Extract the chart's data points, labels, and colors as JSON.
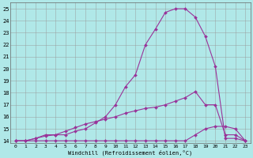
{
  "xlabel": "Windchill (Refroidissement éolien,°C)",
  "background_color": "#b0e8e8",
  "grid_color": "#999999",
  "line_color": "#993399",
  "xlim": [
    -0.5,
    23.5
  ],
  "ylim": [
    13.8,
    25.5
  ],
  "xticks": [
    0,
    1,
    2,
    3,
    4,
    5,
    6,
    7,
    8,
    9,
    10,
    11,
    12,
    13,
    14,
    15,
    16,
    17,
    18,
    19,
    20,
    21,
    22,
    23
  ],
  "yticks": [
    14,
    15,
    16,
    17,
    18,
    19,
    20,
    21,
    22,
    23,
    24,
    25
  ],
  "line1_x": [
    0,
    1,
    2,
    3,
    4,
    5,
    6,
    7,
    8,
    9,
    10,
    11,
    12,
    13,
    14,
    15,
    16,
    17,
    18,
    19,
    20,
    21,
    22,
    23
  ],
  "line1_y": [
    14.0,
    14.0,
    14.2,
    14.5,
    14.5,
    14.5,
    14.8,
    15.0,
    15.5,
    16.0,
    17.0,
    18.5,
    19.5,
    22.0,
    23.3,
    24.7,
    25.0,
    25.0,
    24.3,
    22.7,
    20.2,
    14.2,
    14.2,
    14.0
  ],
  "line2_x": [
    0,
    1,
    2,
    3,
    4,
    5,
    6,
    7,
    8,
    9,
    10,
    11,
    12,
    13,
    14,
    15,
    16,
    17,
    18,
    19,
    20,
    21,
    22,
    23
  ],
  "line2_y": [
    14.0,
    14.0,
    14.0,
    14.0,
    14.0,
    14.0,
    14.0,
    14.0,
    14.0,
    14.0,
    14.0,
    14.0,
    14.0,
    14.0,
    14.0,
    14.0,
    14.0,
    14.0,
    14.5,
    15.0,
    15.2,
    15.2,
    15.0,
    14.0
  ],
  "line3_x": [
    0,
    1,
    2,
    3,
    4,
    5,
    6,
    7,
    8,
    9,
    10,
    11,
    12,
    13,
    14,
    15,
    16,
    17,
    18,
    19,
    20,
    21,
    22,
    23
  ],
  "line3_y": [
    14.0,
    14.0,
    14.2,
    14.4,
    14.5,
    14.8,
    15.1,
    15.4,
    15.6,
    15.8,
    16.0,
    16.3,
    16.5,
    16.7,
    16.8,
    17.0,
    17.3,
    17.6,
    18.1,
    17.0,
    17.0,
    14.5,
    14.5,
    14.0
  ]
}
